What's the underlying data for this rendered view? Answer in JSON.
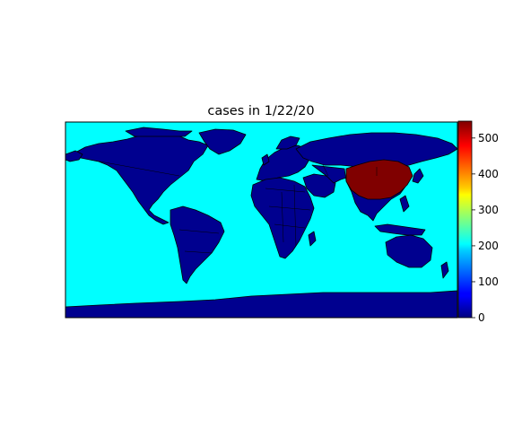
{
  "chart_data": {
    "type": "choropleth-map",
    "title": "cases in 1/22/20",
    "colormap": "jet",
    "ocean_color": "#00ffff",
    "land_default_color": "#00008f",
    "border_color": "#000000",
    "colorbar": {
      "min": 0,
      "max": 547,
      "ticks": [
        "0",
        "100",
        "200",
        "300",
        "400",
        "500"
      ],
      "tick_values": [
        0,
        100,
        200,
        300,
        400,
        500
      ]
    },
    "regions": [
      {
        "name": "China",
        "value": 547
      }
    ]
  }
}
